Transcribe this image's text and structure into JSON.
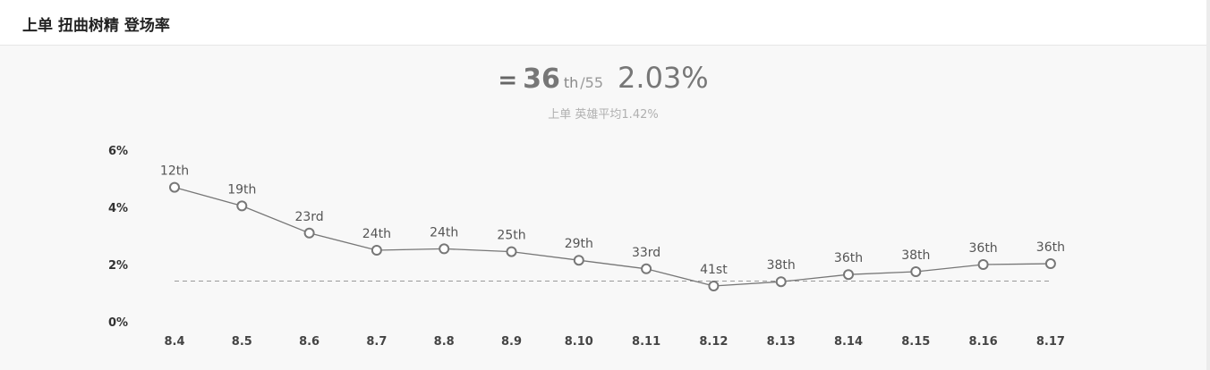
{
  "header": {
    "title": "上单 扭曲树精 登场率"
  },
  "summary": {
    "equals": "=",
    "rank": "36",
    "suffix": "th",
    "total": "/55",
    "rate": "2.03%",
    "subtitle": "上单 英雄平均1.42%"
  },
  "chart_data": {
    "type": "line",
    "categories": [
      "8.4",
      "8.5",
      "8.6",
      "8.7",
      "8.8",
      "8.9",
      "8.10",
      "8.11",
      "8.12",
      "8.13",
      "8.14",
      "8.15",
      "8.16",
      "8.17"
    ],
    "series": [
      {
        "values": [
          4.7,
          4.05,
          3.1,
          2.5,
          2.55,
          2.45,
          2.15,
          1.85,
          1.25,
          1.4,
          1.65,
          1.75,
          2.0,
          2.03
        ],
        "labels": [
          "12th",
          "19th",
          "23rd",
          "24th",
          "24th",
          "25th",
          "29th",
          "33rd",
          "41st",
          "38th",
          "36th",
          "38th",
          "36th",
          "36th"
        ]
      }
    ],
    "reference_line": {
      "value": 1.42,
      "style": "dashed"
    },
    "y_ticks": [
      0,
      2,
      4,
      6
    ],
    "y_tick_labels": [
      "0%",
      "2%",
      "4%",
      "6%"
    ],
    "ylim": [
      0,
      6
    ],
    "grid": false,
    "colors": {
      "line": "#777777",
      "marker_fill": "#ffffff",
      "reference": "#999999"
    }
  }
}
